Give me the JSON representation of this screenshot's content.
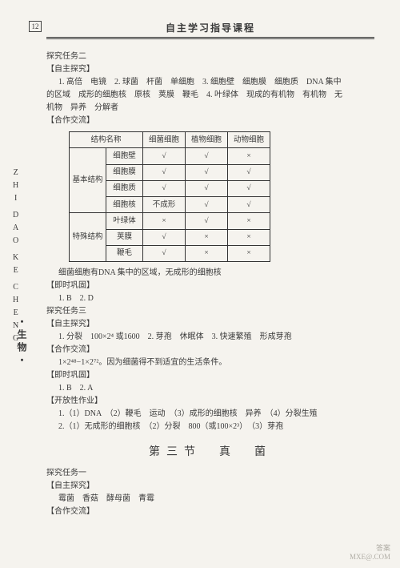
{
  "page_number": "12",
  "header": "自主学习指导课程",
  "side_letters": [
    "Z",
    "H",
    "I",
    " ",
    "D",
    "A",
    "O",
    " ",
    "K",
    "E",
    " ",
    "C",
    "H",
    "E",
    "N",
    "G"
  ],
  "side_cn": "・生物・",
  "lines": {
    "l1": "探究任务二",
    "l2": "【自主探究】",
    "l3": "1. 高倍　电镜　2. 球菌　杆菌　单细胞　3. 细胞壁　细胞膜　细胞质　DNA 集中",
    "l4": "的区域　成形的细胞核　原核　荚膜　鞭毛　4. 叶绿体　现成的有机物　有机物　无",
    "l5": "机物　异养　分解者",
    "l6": "【合作交流】",
    "after_table": "细菌细胞有DNA 集中的区域，无成形的细胞核",
    "l7": "【即时巩固】",
    "l8": "1. B　2. D",
    "l9": "探究任务三",
    "l10": "【自主探究】",
    "l11": "1. 分裂　100×2⁴ 或1600　2. 芽孢　休眠体　3. 快速繁殖　形成芽孢",
    "l12": "【合作交流】",
    "l13": "1×2⁴⁸−1×2⁷²。因为细菌得不到适宜的生活条件。",
    "l14": "【即时巩固】",
    "l15": "1. B　2. A",
    "l16": "【开放性作业】",
    "l17": "1.（1）DNA　（2）鞭毛　运动　（3）成形的细胞核　异养　（4）分裂生殖",
    "l18": "2.（1）无成形的细胞核　（2）分裂　800（或100×2³）　（3）芽孢",
    "section3": "第三节　真　菌",
    "l19": "探究任务一",
    "l20": "【自主探究】",
    "l21": "霉菌　香菇　酵母菌　青霉",
    "l22": "【合作交流】"
  },
  "table": {
    "headers": [
      "结构名称",
      "细菌细胞",
      "植物细胞",
      "动物细胞"
    ],
    "group1": "基本结构",
    "group2": "特殊结构",
    "rows": [
      [
        "细胞壁",
        "√",
        "√",
        "×"
      ],
      [
        "细胞膜",
        "√",
        "√",
        "√"
      ],
      [
        "细胞质",
        "√",
        "√",
        "√"
      ],
      [
        "细胞核",
        "不成形",
        "√",
        "√"
      ],
      [
        "叶绿体",
        "×",
        "√",
        "×"
      ],
      [
        "荚膜",
        "√",
        "×",
        "×"
      ],
      [
        "鞭毛",
        "√",
        "×",
        "×"
      ]
    ]
  },
  "watermark1": "答案",
  "watermark2": "MXE@.COM"
}
